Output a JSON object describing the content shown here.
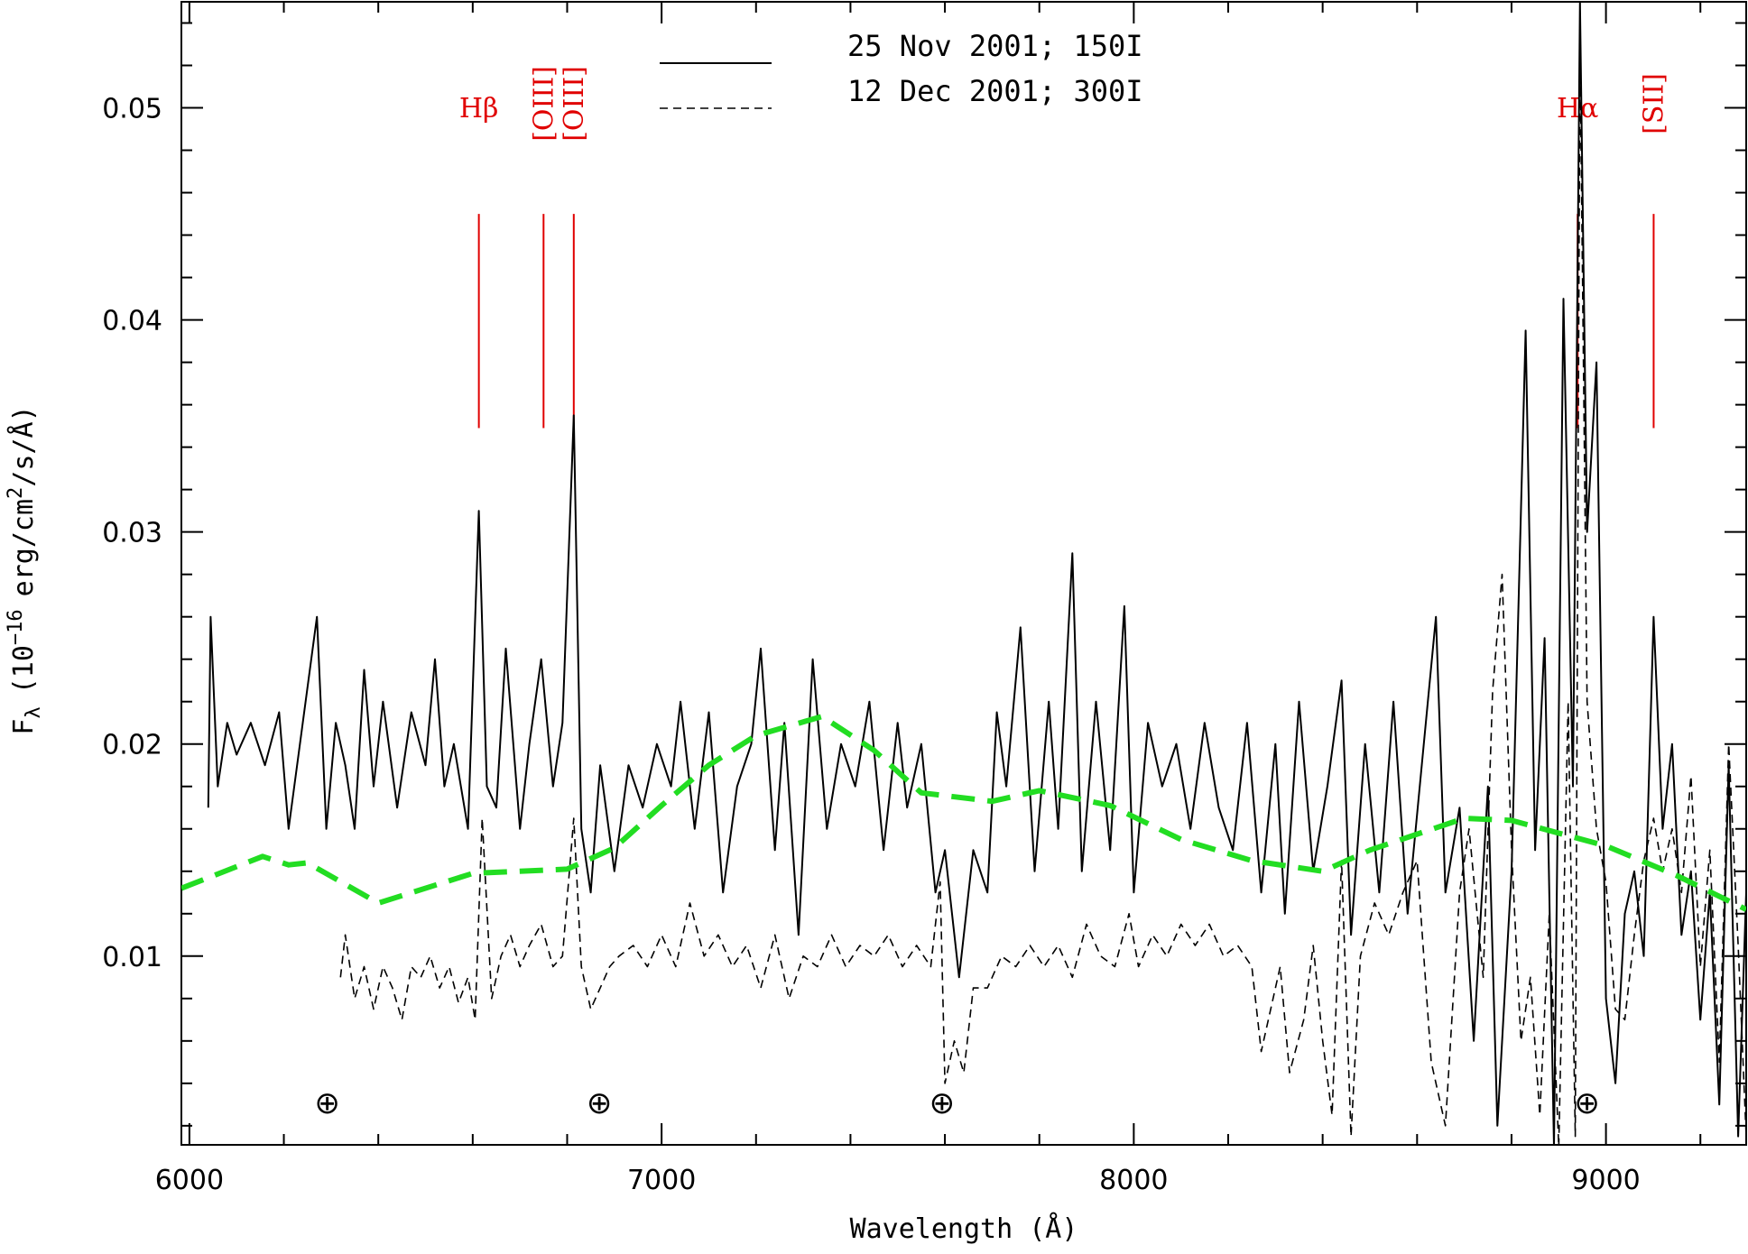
{
  "chart_data": {
    "type": "line",
    "xlabel": "Wavelength (Å)",
    "ylabel": [
      "F",
      "λ",
      "(10",
      "−16",
      "erg/cm",
      "2",
      "/s/Å)"
    ],
    "xlim": [
      5983,
      9297
    ],
    "ylim": [
      0.0011,
      0.055
    ],
    "xticks": [
      6000,
      7000,
      8000,
      9000
    ],
    "xminor": [
      6200,
      6400,
      6600,
      6800,
      7200,
      7400,
      7600,
      7800,
      8200,
      8400,
      8600,
      8800,
      9200
    ],
    "yticks": [
      0.01,
      0.02,
      0.03,
      0.04,
      0.05
    ],
    "yminor": [
      0.002,
      0.004,
      0.006,
      0.008,
      0.012,
      0.014,
      0.016,
      0.018,
      0.022,
      0.024,
      0.026,
      0.028,
      0.032,
      0.034,
      0.036,
      0.038,
      0.042,
      0.044,
      0.046,
      0.048,
      0.052,
      0.054
    ],
    "legend": "top",
    "series": [
      {
        "name": "25 Nov 2001; 150I",
        "color": "#000000",
        "style": "solid",
        "x": [
          6040,
          6045,
          6060,
          6080,
          6100,
          6130,
          6160,
          6190,
          6210,
          6240,
          6270,
          6290,
          6310,
          6330,
          6350,
          6370,
          6390,
          6410,
          6440,
          6470,
          6500,
          6520,
          6540,
          6560,
          6590,
          6613,
          6630,
          6650,
          6670,
          6700,
          6720,
          6745,
          6770,
          6790,
          6814,
          6830,
          6850,
          6870,
          6900,
          6930,
          6960,
          6990,
          7020,
          7040,
          7070,
          7100,
          7130,
          7160,
          7190,
          7210,
          7240,
          7260,
          7290,
          7320,
          7350,
          7380,
          7410,
          7440,
          7470,
          7500,
          7520,
          7550,
          7580,
          7600,
          7630,
          7660,
          7690,
          7710,
          7730,
          7760,
          7790,
          7820,
          7840,
          7870,
          7890,
          7920,
          7950,
          7980,
          8000,
          8030,
          8060,
          8090,
          8120,
          8150,
          8180,
          8210,
          8240,
          8270,
          8300,
          8320,
          8350,
          8380,
          8410,
          8440,
          8460,
          8490,
          8520,
          8550,
          8580,
          8610,
          8640,
          8660,
          8690,
          8720,
          8750,
          8770,
          8800,
          8830,
          8850,
          8870,
          8890,
          8910,
          8930,
          8945,
          8960,
          8980,
          9000,
          9020,
          9040,
          9060,
          9080,
          9101,
          9120,
          9140,
          9160,
          9180,
          9200,
          9220,
          9240,
          9260,
          9280,
          9297
        ],
        "values": [
          0.017,
          0.026,
          0.018,
          0.021,
          0.0195,
          0.021,
          0.019,
          0.0215,
          0.016,
          0.021,
          0.026,
          0.016,
          0.021,
          0.019,
          0.016,
          0.0235,
          0.018,
          0.022,
          0.017,
          0.0215,
          0.019,
          0.024,
          0.018,
          0.02,
          0.016,
          0.031,
          0.018,
          0.017,
          0.0245,
          0.016,
          0.02,
          0.024,
          0.018,
          0.021,
          0.0355,
          0.016,
          0.013,
          0.019,
          0.014,
          0.019,
          0.017,
          0.02,
          0.018,
          0.022,
          0.016,
          0.0215,
          0.013,
          0.018,
          0.02,
          0.0245,
          0.015,
          0.021,
          0.011,
          0.024,
          0.016,
          0.02,
          0.018,
          0.022,
          0.015,
          0.021,
          0.017,
          0.02,
          0.013,
          0.015,
          0.009,
          0.015,
          0.013,
          0.0215,
          0.018,
          0.0255,
          0.014,
          0.022,
          0.016,
          0.029,
          0.014,
          0.022,
          0.015,
          0.0265,
          0.013,
          0.021,
          0.018,
          0.02,
          0.016,
          0.021,
          0.017,
          0.015,
          0.021,
          0.013,
          0.02,
          0.012,
          0.022,
          0.014,
          0.018,
          0.023,
          0.011,
          0.02,
          0.013,
          0.022,
          0.012,
          0.019,
          0.026,
          0.013,
          0.017,
          0.006,
          0.018,
          0.002,
          0.014,
          0.0395,
          0.015,
          0.025,
          0.001,
          0.041,
          0.018,
          0.055,
          0.03,
          0.038,
          0.008,
          0.004,
          0.012,
          0.014,
          0.01,
          0.026,
          0.016,
          0.02,
          0.011,
          0.014,
          0.007,
          0.013,
          0.003,
          0.019,
          0.0015,
          0.013
        ]
      },
      {
        "name": "12 Dec 2001; 300I",
        "color": "#000000",
        "style": "dashed",
        "x": [
          6320,
          6330,
          6350,
          6370,
          6390,
          6410,
          6430,
          6450,
          6470,
          6490,
          6510,
          6530,
          6550,
          6570,
          6590,
          6605,
          6620,
          6640,
          6660,
          6680,
          6700,
          6720,
          6745,
          6770,
          6790,
          6814,
          6830,
          6850,
          6870,
          6890,
          6910,
          6940,
          6970,
          7000,
          7030,
          7060,
          7090,
          7120,
          7150,
          7180,
          7210,
          7240,
          7270,
          7300,
          7330,
          7360,
          7390,
          7420,
          7450,
          7480,
          7510,
          7540,
          7570,
          7590,
          7600,
          7620,
          7640,
          7660,
          7690,
          7720,
          7750,
          7780,
          7810,
          7840,
          7870,
          7900,
          7930,
          7960,
          7990,
          8010,
          8040,
          8070,
          8100,
          8130,
          8160,
          8190,
          8220,
          8250,
          8270,
          8290,
          8310,
          8330,
          8360,
          8380,
          8400,
          8420,
          8440,
          8460,
          8480,
          8510,
          8540,
          8570,
          8600,
          8630,
          8660,
          8690,
          8710,
          8740,
          8760,
          8780,
          8800,
          8820,
          8840,
          8860,
          8880,
          8900,
          8920,
          8935,
          8945,
          8960,
          8980,
          9000,
          9020,
          9040,
          9060,
          9080,
          9101,
          9120,
          9140,
          9160,
          9180,
          9200,
          9220,
          9240,
          9260,
          9280,
          9297
        ],
        "values": [
          0.009,
          0.011,
          0.008,
          0.0095,
          0.0075,
          0.0095,
          0.0085,
          0.007,
          0.0095,
          0.009,
          0.01,
          0.0085,
          0.0095,
          0.0078,
          0.009,
          0.007,
          0.0165,
          0.008,
          0.01,
          0.011,
          0.0095,
          0.0105,
          0.0115,
          0.0095,
          0.01,
          0.0165,
          0.0095,
          0.0075,
          0.0085,
          0.0095,
          0.01,
          0.0105,
          0.0095,
          0.011,
          0.0095,
          0.0125,
          0.01,
          0.011,
          0.0095,
          0.0105,
          0.0085,
          0.011,
          0.008,
          0.01,
          0.0095,
          0.011,
          0.0095,
          0.0105,
          0.01,
          0.011,
          0.0095,
          0.0105,
          0.0095,
          0.0135,
          0.004,
          0.006,
          0.0045,
          0.0085,
          0.0085,
          0.01,
          0.0095,
          0.0105,
          0.0095,
          0.0105,
          0.009,
          0.0115,
          0.01,
          0.0095,
          0.012,
          0.0095,
          0.011,
          0.01,
          0.0115,
          0.0105,
          0.0115,
          0.01,
          0.0105,
          0.0095,
          0.0055,
          0.0075,
          0.0095,
          0.0045,
          0.007,
          0.0105,
          0.006,
          0.0025,
          0.0145,
          0.0015,
          0.01,
          0.0125,
          0.011,
          0.013,
          0.0145,
          0.005,
          0.002,
          0.013,
          0.016,
          0.009,
          0.0225,
          0.028,
          0.015,
          0.006,
          0.009,
          0.0025,
          0.012,
          0.001,
          0.022,
          0.0015,
          0.053,
          0.022,
          0.016,
          0.0135,
          0.0075,
          0.007,
          0.011,
          0.0145,
          0.0165,
          0.014,
          0.016,
          0.013,
          0.0185,
          0.0095,
          0.015,
          0.005,
          0.02,
          0.0105,
          0.0015
        ]
      },
      {
        "color": "#22dd22",
        "style": "thick-dashed",
        "x": [
          5983,
          6155,
          6210,
          6250,
          6400,
          6600,
          6800,
          6900,
          7000,
          7100,
          7200,
          7340,
          7450,
          7550,
          7700,
          7800,
          7950,
          8100,
          8250,
          8400,
          8500,
          8700,
          8800,
          9000,
          9150,
          9297
        ],
        "values": [
          0.0132,
          0.0147,
          0.0143,
          0.0144,
          0.0125,
          0.0139,
          0.0141,
          0.0151,
          0.0171,
          0.019,
          0.0204,
          0.0213,
          0.0197,
          0.0177,
          0.0173,
          0.0178,
          0.0171,
          0.0155,
          0.0145,
          0.014,
          0.015,
          0.0165,
          0.0164,
          0.0152,
          0.0138,
          0.0122
        ]
      }
    ],
    "line_span": [
      0.0349,
      0.045
    ],
    "lines": [
      {
        "label": "Hβ",
        "x": 6613,
        "rotate": false
      },
      {
        "label": "[OIII]",
        "x": 6750,
        "rotate": true
      },
      {
        "label": "[OIII]",
        "x": 6814,
        "rotate": true
      },
      {
        "label": "Hα",
        "x": 8940,
        "rotate": false
      },
      {
        "label": "[SII]",
        "x": 9101,
        "rotate": true
      }
    ],
    "line_color": "#e00000",
    "telluric": {
      "symbol": "⊕",
      "x": [
        6292,
        6868,
        7594,
        8960
      ],
      "y": 0.0031
    }
  }
}
